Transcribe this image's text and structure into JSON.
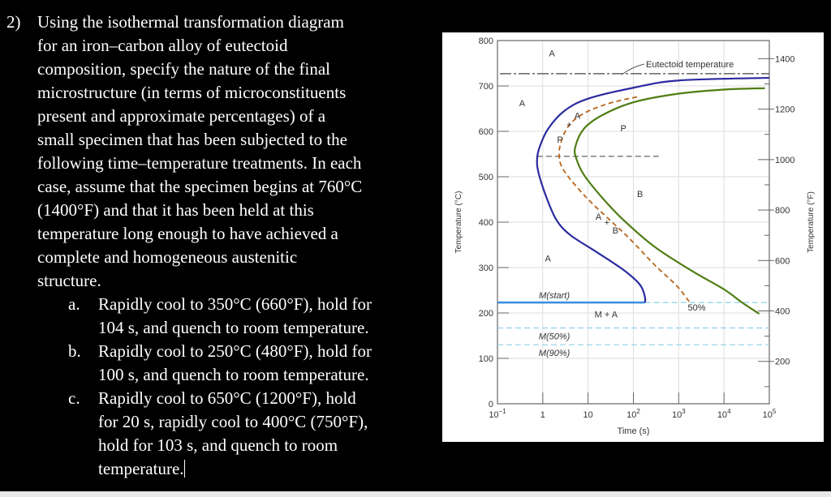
{
  "question": {
    "number": "2)",
    "intro_lines": [
      "Using the isothermal transformation diagram",
      "for an iron–carbon alloy of eutectoid",
      "composition, specify the nature of the final",
      "microstructure (in terms of microconstituents",
      "present and approximate percentages) of a",
      "small specimen that has been subjected to the",
      "following time–temperature treatments. In each",
      "case, assume that the specimen begins at 760°C",
      "(1400°F) and that it has been held at this",
      "temperature long enough to have achieved a",
      "complete and homogeneous austenitic",
      "structure."
    ],
    "items": [
      {
        "label": "a.",
        "lines": [
          "Rapidly cool to 350°C (660°F), hold for",
          "104 s, and quench to room temperature."
        ]
      },
      {
        "label": "b.",
        "lines": [
          "Rapidly cool to 250°C (480°F), hold for",
          "100 s, and quench to room temperature."
        ]
      },
      {
        "label": "c.",
        "lines": [
          "Rapidly cool to 650°C (1200°F), hold",
          "for 20 s, rapidly cool to 400°C (750°F),",
          "hold for 103 s, and quench to room",
          "temperature."
        ]
      }
    ]
  },
  "chart_data": {
    "type": "line",
    "xlabel": "Time (s)",
    "ylabel": "Temperature (°C)",
    "y2label": "Temperature (°F)",
    "xscale": "log",
    "xlim": [
      0.1,
      100000
    ],
    "ylim": [
      0,
      800
    ],
    "x_ticks": [
      {
        "v": 0.1,
        "base": "10",
        "exp": "−1"
      },
      {
        "v": 1,
        "base": "1",
        "exp": ""
      },
      {
        "v": 10,
        "base": "10",
        "exp": ""
      },
      {
        "v": 100,
        "base": "10",
        "exp": "2"
      },
      {
        "v": 1000,
        "base": "10",
        "exp": "3"
      },
      {
        "v": 10000,
        "base": "10",
        "exp": "4"
      },
      {
        "v": 100000,
        "base": "10",
        "exp": "5"
      }
    ],
    "y_ticks": [
      "0",
      "100",
      "200",
      "300",
      "400",
      "500",
      "600",
      "700",
      "800"
    ],
    "y2_ticks": [
      "200",
      "400",
      "600",
      "800",
      "1000",
      "1200",
      "1400"
    ],
    "grid": true,
    "colors": {
      "start": "#2a2aa0",
      "end": "#4e7d12",
      "fifty": "#b8641a",
      "martensite": "#3a8ee0",
      "martensite_dashed": "#8fd0ea"
    },
    "series": [
      {
        "key": "start",
        "points": [
          [
            100000,
            718
          ],
          [
            1000,
            712
          ],
          [
            100,
            696
          ],
          [
            10,
            672
          ],
          [
            3,
            645
          ],
          [
            1.3,
            605
          ],
          [
            0.85,
            565
          ],
          [
            0.75,
            540
          ],
          [
            0.8,
            510
          ],
          [
            1.2,
            455
          ],
          [
            2,
            405
          ],
          [
            4,
            372
          ],
          [
            15,
            335
          ],
          [
            60,
            295
          ],
          [
            140,
            262
          ],
          [
            180,
            235
          ],
          [
            180,
            223
          ]
        ]
      },
      {
        "key": "end",
        "points": [
          [
            80000,
            695
          ],
          [
            10000,
            692
          ],
          [
            1000,
            683
          ],
          [
            100,
            664
          ],
          [
            20,
            635
          ],
          [
            8,
            605
          ],
          [
            5.2,
            565
          ],
          [
            5.5,
            540
          ],
          [
            8,
            505
          ],
          [
            20,
            455
          ],
          [
            60,
            405
          ],
          [
            300,
            345
          ],
          [
            2000,
            292
          ],
          [
            10000,
            252
          ],
          [
            25000,
            223
          ],
          [
            60000,
            198
          ]
        ]
      },
      {
        "key": "fifty",
        "name": "50%",
        "points": [
          [
            120,
            676
          ],
          [
            30,
            662
          ],
          [
            9,
            642
          ],
          [
            4,
            616
          ],
          [
            2.6,
            580
          ],
          [
            2.3,
            545
          ],
          [
            3,
            512
          ],
          [
            9,
            455
          ],
          [
            30,
            405
          ],
          [
            80,
            365
          ],
          [
            300,
            305
          ],
          [
            900,
            260
          ],
          [
            1700,
            225
          ]
        ]
      }
    ],
    "eutectoid": {
      "label": "Eutectoid temperature",
      "temp": 727
    },
    "nose_line_temp": 545,
    "martensite": [
      {
        "label": "M(start)",
        "temp": 223
      },
      {
        "label": "M(50%)",
        "temp": 167
      },
      {
        "label": "M(90%)",
        "temp": 130
      }
    ],
    "region_labels": [
      {
        "text": "A",
        "t": 1.6,
        "T": 765
      },
      {
        "text": "A",
        "t": 0.35,
        "T": 655
      },
      {
        "text": "A",
        "t": 1.3,
        "T": 313
      },
      {
        "text": "P",
        "t": 60,
        "T": 600
      },
      {
        "text": "B",
        "t": 140,
        "T": 455
      },
      {
        "text": "M + A",
        "t": 25,
        "T": 190
      },
      {
        "text": "50%",
        "t": 2500,
        "T": 205
      },
      {
        "text": "P",
        "t": 2.4,
        "T": 575
      },
      {
        "text": "+",
        "t": 3.8,
        "T": 608
      },
      {
        "text": "A",
        "t": 5.8,
        "T": 628
      },
      {
        "text": "A",
        "t": 17,
        "T": 405
      },
      {
        "text": "+",
        "t": 26,
        "T": 393
      },
      {
        "text": "B",
        "t": 40,
        "T": 375
      }
    ]
  }
}
